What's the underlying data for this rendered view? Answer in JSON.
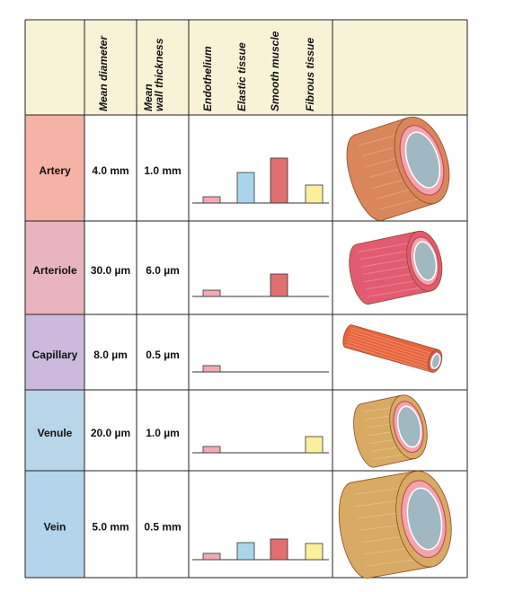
{
  "header": {
    "diameter": "Mean diameter",
    "wall_thickness": [
      "Mean",
      "wall thickness"
    ],
    "tissues": [
      "Endothelium",
      "Elastic tissue",
      "Smooth muscle",
      "Fibrous tissue"
    ]
  },
  "tissue_colors": [
    "#f2aab2",
    "#a9d5ea",
    "#e06f6f",
    "#fbef9c"
  ],
  "rows": [
    {
      "name": "Artery",
      "color": "#f4b3a6",
      "diameter": "4.0 mm",
      "wall": "1.0 mm",
      "tissue": [
        0.7,
        3.4,
        5.0,
        2.0
      ]
    },
    {
      "name": "Arteriole",
      "color": "#e9b3bf",
      "diameter": "30.0 µm",
      "wall": "6.0 µm",
      "tissue": [
        0.7,
        0,
        2.5,
        0
      ]
    },
    {
      "name": "Capillary",
      "color": "#cbbadc",
      "diameter": "8.0 µm",
      "wall": "0.5 µm",
      "tissue": [
        0.7,
        0,
        0,
        0
      ]
    },
    {
      "name": "Venule",
      "color": "#b9d5e8",
      "diameter": "20.0 µm",
      "wall": "1.0 µm",
      "tissue": [
        0.7,
        0,
        0,
        1.8
      ]
    },
    {
      "name": "Vein",
      "color": "#b3d4ea",
      "diameter": "5.0 mm",
      "wall": "0.5 mm",
      "tissue": [
        0.7,
        1.9,
        2.3,
        1.8
      ]
    }
  ]
}
